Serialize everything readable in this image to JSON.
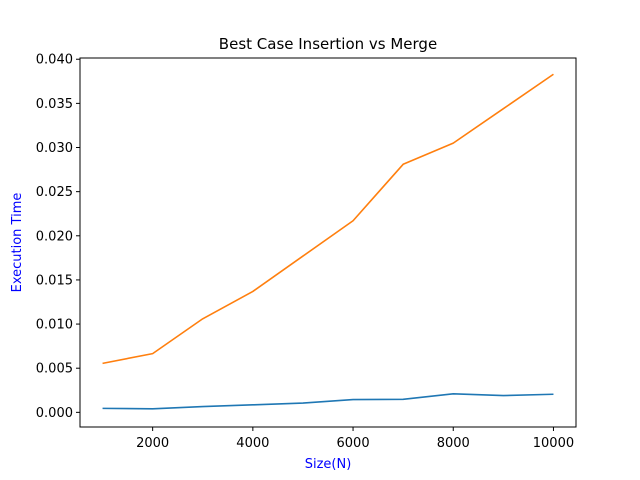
{
  "chart_data": {
    "type": "line",
    "title": "Best Case Insertion vs Merge",
    "xlabel": "Size(N)",
    "ylabel": "Execution Time",
    "label_color": "#0000ff",
    "x": [
      1000,
      2000,
      3000,
      4000,
      5000,
      6000,
      7000,
      8000,
      9000,
      10000
    ],
    "xlim": [
      550,
      10450
    ],
    "ylim": [
      -0.00166,
      0.04014
    ],
    "xticks": [
      2000,
      4000,
      6000,
      8000,
      10000
    ],
    "xtick_labels": [
      "2000",
      "4000",
      "6000",
      "8000",
      "10000"
    ],
    "yticks": [
      0.0,
      0.005,
      0.01,
      0.015,
      0.02,
      0.025,
      0.03,
      0.035,
      0.04
    ],
    "ytick_labels": [
      "0.000",
      "0.005",
      "0.010",
      "0.015",
      "0.020",
      "0.025",
      "0.030",
      "0.035",
      "0.040"
    ],
    "grid": false,
    "legend": "none",
    "series": [
      {
        "color": "#1f77b4",
        "values": [
          0.00045,
          0.0004,
          0.00065,
          0.00085,
          0.00105,
          0.00145,
          0.00148,
          0.0021,
          0.0019,
          0.00205
        ]
      },
      {
        "color": "#ff7f0e",
        "values": [
          0.00555,
          0.00665,
          0.0106,
          0.0137,
          0.0177,
          0.0217,
          0.0281,
          0.0305,
          0.0344,
          0.0383
        ]
      }
    ]
  }
}
